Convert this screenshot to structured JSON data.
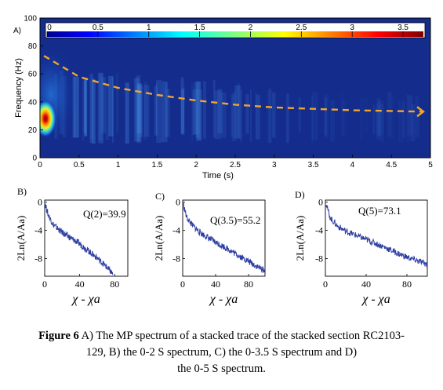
{
  "caption": {
    "label": "Figure 6",
    "text_line1": "A) The MP spectrum of a stacked trace of the stacked section RC2103-",
    "text_line2": "129, B) the 0-2 S spectrum, C) the 0-3.5 S spectrum and D)",
    "text_line3": "the 0-5 S spectrum."
  },
  "chart_data": [
    {
      "type": "heatmap",
      "panel_label": "A)",
      "xlabel": "Time (s)",
      "ylabel": "Frequency (Hz)",
      "xlim": [
        0,
        5
      ],
      "ylim": [
        0,
        100
      ],
      "x_ticks": [
        "0",
        "0.5",
        "1",
        "1.5",
        "2",
        "2.5",
        "3",
        "3.5",
        "4",
        "4.5",
        "5"
      ],
      "y_ticks": [
        "0",
        "20",
        "40",
        "60",
        "80",
        "100"
      ],
      "colorbar": {
        "min": 0,
        "max": 3.7,
        "ticks": [
          "0",
          "0.5",
          "1",
          "1.5",
          "2",
          "2.5",
          "3",
          "3.5"
        ],
        "colormap": "jet"
      },
      "hotspots": [
        {
          "t": 0.08,
          "f": 26,
          "value": 3.7
        },
        {
          "t": 0.1,
          "f": 38,
          "value": 1.2
        },
        {
          "t": 0.12,
          "f": 60,
          "value": 0.6
        }
      ],
      "trend_line": {
        "style": "dashed",
        "color": "#f2a52a",
        "points": [
          [
            0.05,
            73
          ],
          [
            0.5,
            58
          ],
          [
            1.0,
            50
          ],
          [
            1.5,
            45
          ],
          [
            2.0,
            41
          ],
          [
            2.5,
            38
          ],
          [
            3.0,
            36
          ],
          [
            3.5,
            35
          ],
          [
            4.0,
            34
          ],
          [
            4.5,
            33.5
          ],
          [
            4.9,
            33
          ]
        ]
      }
    },
    {
      "type": "line",
      "panel_label": "B)",
      "annotation": "Q(2)=39.9",
      "ylabel": "2Ln(A/Aa)",
      "xlabel": "χ - χa",
      "xlim": [
        0,
        95
      ],
      "ylim": [
        -10.5,
        0.3
      ],
      "x_ticks": [
        "0",
        "40",
        "80"
      ],
      "y_ticks": [
        "0",
        "-4",
        "-8"
      ],
      "color": "#2f3fa3",
      "series": [
        {
          "x": [
            0,
            4,
            10,
            20,
            30,
            40,
            50,
            60,
            70,
            78
          ],
          "y": [
            0,
            -1.8,
            -3.2,
            -4.3,
            -5.1,
            -5.9,
            -6.9,
            -7.9,
            -9.1,
            -10.2
          ]
        }
      ]
    },
    {
      "type": "line",
      "panel_label": "C)",
      "annotation": "Q(3.5)=55.2",
      "ylabel": "2Ln(A/Aa)",
      "xlabel": "χ - χa",
      "xlim": [
        0,
        100
      ],
      "ylim": [
        -10.5,
        0.3
      ],
      "x_ticks": [
        "0",
        "40",
        "80"
      ],
      "y_ticks": [
        "0",
        "-4",
        "-8"
      ],
      "color": "#2f3fa3",
      "series": [
        {
          "x": [
            0,
            5,
            12,
            20,
            30,
            40,
            50,
            60,
            70,
            80,
            90,
            100
          ],
          "y": [
            0,
            -2.2,
            -3.3,
            -4.2,
            -5.0,
            -5.7,
            -6.3,
            -7.0,
            -7.7,
            -8.4,
            -9.1,
            -9.7
          ]
        }
      ]
    },
    {
      "type": "line",
      "panel_label": "D)",
      "annotation": "Q(5)=73.1",
      "ylabel": "2Ln(A/Aa)",
      "xlabel": "χ - χa",
      "xlim": [
        0,
        100
      ],
      "ylim": [
        -10.5,
        0.3
      ],
      "x_ticks": [
        "0",
        "40",
        "80"
      ],
      "y_ticks": [
        "0",
        "-4",
        "-8"
      ],
      "color": "#2f3fa3",
      "series": [
        {
          "x": [
            0,
            5,
            12,
            20,
            30,
            40,
            50,
            60,
            70,
            80,
            90,
            100
          ],
          "y": [
            0,
            -2.3,
            -3.4,
            -4.1,
            -4.7,
            -5.3,
            -5.9,
            -6.5,
            -7.2,
            -7.8,
            -8.3,
            -8.8
          ]
        }
      ]
    }
  ]
}
